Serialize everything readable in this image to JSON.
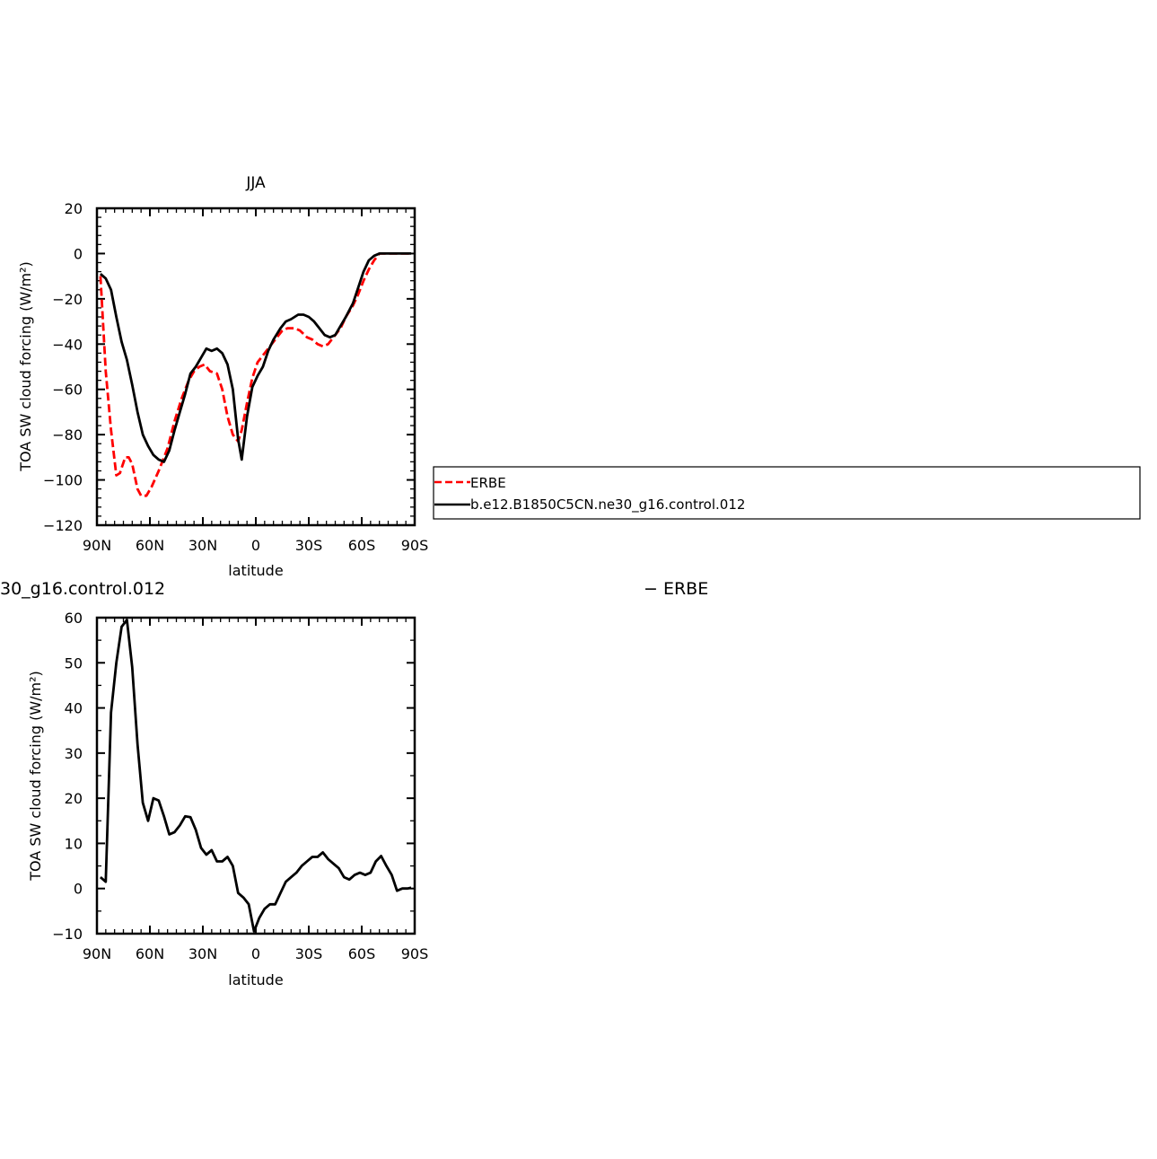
{
  "chart_data": [
    {
      "type": "line",
      "title": "JJA",
      "xlabel": "latitude",
      "ylabel": "TOA SW cloud forcing (W/m²)",
      "xlim": [
        90,
        -90
      ],
      "ylim": [
        -120,
        20
      ],
      "xticks": [
        {
          "value": 90,
          "label": "90N"
        },
        {
          "value": 60,
          "label": "60N"
        },
        {
          "value": 30,
          "label": "30N"
        },
        {
          "value": 0,
          "label": "0"
        },
        {
          "value": -30,
          "label": "30S"
        },
        {
          "value": -60,
          "label": "60S"
        },
        {
          "value": -90,
          "label": "90S"
        }
      ],
      "yticks": [
        {
          "value": 20,
          "label": "20"
        },
        {
          "value": 0,
          "label": "0"
        },
        {
          "value": -20,
          "label": "−20"
        },
        {
          "value": -40,
          "label": "−40"
        },
        {
          "value": -60,
          "label": "−60"
        },
        {
          "value": -80,
          "label": "−80"
        },
        {
          "value": -100,
          "label": "−100"
        },
        {
          "value": -120,
          "label": "−120"
        }
      ],
      "series": [
        {
          "name": "ERBE",
          "color": "#ff0000",
          "dash": true,
          "points": [
            [
              88,
              -10
            ],
            [
              85,
              -52
            ],
            [
              82,
              -78
            ],
            [
              79,
              -98
            ],
            [
              77,
              -97
            ],
            [
              74,
              -90
            ],
            [
              72,
              -90
            ],
            [
              70,
              -93
            ],
            [
              67,
              -104
            ],
            [
              65,
              -107
            ],
            [
              62,
              -107
            ],
            [
              59,
              -103
            ],
            [
              55,
              -96
            ],
            [
              50,
              -86
            ],
            [
              46,
              -74
            ],
            [
              42,
              -64
            ],
            [
              38,
              -56
            ],
            [
              35,
              -52
            ],
            [
              32,
              -50
            ],
            [
              29,
              -49
            ],
            [
              26,
              -52
            ],
            [
              22,
              -53
            ],
            [
              19,
              -60
            ],
            [
              16,
              -72
            ],
            [
              13,
              -80
            ],
            [
              10,
              -83
            ],
            [
              8,
              -78
            ],
            [
              5,
              -66
            ],
            [
              2,
              -55
            ],
            [
              -1,
              -48
            ],
            [
              -4,
              -45
            ],
            [
              -8,
              -41
            ],
            [
              -12,
              -37
            ],
            [
              -15,
              -34
            ],
            [
              -18,
              -33
            ],
            [
              -22,
              -33
            ],
            [
              -25,
              -34
            ],
            [
              -29,
              -37
            ],
            [
              -32,
              -38
            ],
            [
              -35,
              -40
            ],
            [
              -38,
              -41
            ],
            [
              -41,
              -40
            ],
            [
              -44,
              -37
            ],
            [
              -48,
              -33
            ],
            [
              -51,
              -28
            ],
            [
              -55,
              -23
            ],
            [
              -58,
              -18
            ],
            [
              -61,
              -12
            ],
            [
              -64,
              -7
            ],
            [
              -67,
              -3
            ],
            [
              -70,
              0
            ],
            [
              -74,
              0
            ],
            [
              -78,
              0
            ],
            [
              -82,
              0
            ],
            [
              -86,
              0
            ],
            [
              -88,
              0
            ]
          ]
        },
        {
          "name": "b.e12.B1850C5CN.ne30_g16.control.012",
          "color": "#000000",
          "dash": false,
          "points": [
            [
              88,
              -9
            ],
            [
              85,
              -11
            ],
            [
              82,
              -16
            ],
            [
              79,
              -28
            ],
            [
              76,
              -39
            ],
            [
              73,
              -47
            ],
            [
              70,
              -58
            ],
            [
              67,
              -70
            ],
            [
              64,
              -80
            ],
            [
              61,
              -85
            ],
            [
              58,
              -89
            ],
            [
              55,
              -91
            ],
            [
              52,
              -92
            ],
            [
              49,
              -87
            ],
            [
              46,
              -78
            ],
            [
              43,
              -70
            ],
            [
              40,
              -62
            ],
            [
              37,
              -53
            ],
            [
              34,
              -50
            ],
            [
              31,
              -46
            ],
            [
              28,
              -42
            ],
            [
              25,
              -43
            ],
            [
              22,
              -42
            ],
            [
              19,
              -44
            ],
            [
              16,
              -49
            ],
            [
              13,
              -60
            ],
            [
              10,
              -82
            ],
            [
              8,
              -91
            ],
            [
              5,
              -72
            ],
            [
              2,
              -59
            ],
            [
              -1,
              -54
            ],
            [
              -4,
              -50
            ],
            [
              -7,
              -43
            ],
            [
              -10,
              -38
            ],
            [
              -14,
              -33
            ],
            [
              -17,
              -30
            ],
            [
              -20,
              -29
            ],
            [
              -24,
              -27
            ],
            [
              -27,
              -27
            ],
            [
              -30,
              -28
            ],
            [
              -33,
              -30
            ],
            [
              -36,
              -33
            ],
            [
              -39,
              -36
            ],
            [
              -42,
              -37
            ],
            [
              -45,
              -36
            ],
            [
              -48,
              -32
            ],
            [
              -51,
              -28
            ],
            [
              -55,
              -22
            ],
            [
              -58,
              -15
            ],
            [
              -61,
              -8
            ],
            [
              -64,
              -3
            ],
            [
              -67,
              -1
            ],
            [
              -70,
              0
            ],
            [
              -74,
              0
            ],
            [
              -78,
              0
            ],
            [
              -82,
              0
            ],
            [
              -86,
              0
            ],
            [
              -88,
              0
            ]
          ]
        }
      ]
    },
    {
      "type": "line",
      "title_fragment_left": "30_g16.control.012",
      "title_fragment_right": "− ERBE",
      "xlabel": "latitude",
      "ylabel": "TOA SW cloud forcing (W/m²)",
      "xlim": [
        90,
        -90
      ],
      "ylim": [
        -10,
        60
      ],
      "xticks": [
        {
          "value": 90,
          "label": "90N"
        },
        {
          "value": 60,
          "label": "60N"
        },
        {
          "value": 30,
          "label": "30N"
        },
        {
          "value": 0,
          "label": "0"
        },
        {
          "value": -30,
          "label": "30S"
        },
        {
          "value": -60,
          "label": "60S"
        },
        {
          "value": -90,
          "label": "90S"
        }
      ],
      "yticks": [
        {
          "value": 60,
          "label": "60"
        },
        {
          "value": 50,
          "label": "50"
        },
        {
          "value": 40,
          "label": "40"
        },
        {
          "value": 30,
          "label": "30"
        },
        {
          "value": 20,
          "label": "20"
        },
        {
          "value": 10,
          "label": "10"
        },
        {
          "value": 0,
          "label": "0"
        },
        {
          "value": -10,
          "label": "−10"
        }
      ],
      "series": [
        {
          "color": "#000000",
          "dash": false,
          "points": [
            [
              88,
              2.5
            ],
            [
              85,
              1.5
            ],
            [
              82,
              39
            ],
            [
              79,
              50
            ],
            [
              76,
              58
            ],
            [
              73,
              59.5
            ],
            [
              70,
              49
            ],
            [
              67,
              32
            ],
            [
              64,
              19
            ],
            [
              61,
              15
            ],
            [
              58,
              20
            ],
            [
              55,
              19.5
            ],
            [
              52,
              16
            ],
            [
              49,
              12
            ],
            [
              46,
              12.5
            ],
            [
              43,
              14
            ],
            [
              40,
              16
            ],
            [
              37,
              15.8
            ],
            [
              34,
              13
            ],
            [
              31,
              9
            ],
            [
              28,
              7.5
            ],
            [
              25,
              8.5
            ],
            [
              22,
              6
            ],
            [
              19,
              6
            ],
            [
              16,
              7
            ],
            [
              13,
              5
            ],
            [
              10,
              -1
            ],
            [
              7,
              -2
            ],
            [
              4,
              -3.5
            ],
            [
              1,
              -9.5
            ],
            [
              -2,
              -6.5
            ],
            [
              -5,
              -4.5
            ],
            [
              -8,
              -3.5
            ],
            [
              -11,
              -3.5
            ],
            [
              -14,
              -1
            ],
            [
              -17,
              1.5
            ],
            [
              -20,
              2.5
            ],
            [
              -23,
              3.5
            ],
            [
              -26,
              5
            ],
            [
              -29,
              6
            ],
            [
              -32,
              7
            ],
            [
              -35,
              7
            ],
            [
              -38,
              8
            ],
            [
              -41,
              6.5
            ],
            [
              -44,
              5.5
            ],
            [
              -47,
              4.5
            ],
            [
              -50,
              2.5
            ],
            [
              -53,
              2
            ],
            [
              -56,
              3
            ],
            [
              -59,
              3.5
            ],
            [
              -62,
              3
            ],
            [
              -65,
              3.5
            ],
            [
              -68,
              6
            ],
            [
              -71,
              7.2
            ],
            [
              -74,
              5
            ],
            [
              -77,
              3
            ],
            [
              -80,
              -0.5
            ],
            [
              -83,
              0
            ],
            [
              -86,
              0
            ],
            [
              -88,
              0.2
            ]
          ]
        }
      ]
    }
  ],
  "legend": {
    "items": [
      {
        "label": "ERBE",
        "color": "#ff0000",
        "dash": true
      },
      {
        "label": "b.e12.B1850C5CN.ne30_g16.control.012",
        "color": "#000000",
        "dash": false
      }
    ]
  }
}
